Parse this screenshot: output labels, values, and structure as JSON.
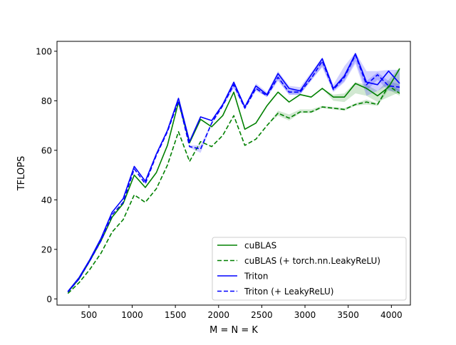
{
  "chart_data": {
    "type": "line",
    "xlabel": "M = N = K",
    "ylabel": "TFLOPS",
    "xlim": [
      130,
      4220
    ],
    "ylim": [
      -2.5,
      104
    ],
    "x_ticks": [
      500,
      1000,
      1500,
      2000,
      2500,
      3000,
      3500,
      4000
    ],
    "y_ticks": [
      0,
      20,
      40,
      60,
      80,
      100
    ],
    "grid": false,
    "legend_position": "lower right",
    "x": [
      256,
      384,
      512,
      640,
      768,
      896,
      1024,
      1152,
      1280,
      1408,
      1536,
      1664,
      1792,
      1920,
      2048,
      2176,
      2304,
      2432,
      2560,
      2688,
      2816,
      2944,
      3072,
      3200,
      3328,
      3456,
      3584,
      3712,
      3840,
      3968,
      4096
    ],
    "series": [
      {
        "name": "cuBLAS",
        "color": "#008000",
        "linestyle": "solid",
        "values": [
          2.8,
          8.0,
          15.5,
          23.5,
          33.0,
          38.5,
          50.0,
          45.0,
          51.0,
          62.0,
          79.5,
          63.0,
          72.5,
          69.5,
          74.0,
          83.5,
          68.5,
          71.0,
          78.0,
          83.5,
          79.5,
          82.5,
          81.5,
          85.0,
          81.5,
          81.5,
          87.0,
          85.0,
          82.0,
          85.5,
          93.0
        ],
        "band_low": [
          2.8,
          8.0,
          15.5,
          23.5,
          33.0,
          38.5,
          50.0,
          45.0,
          51.0,
          62.0,
          79.5,
          63.0,
          72.5,
          69.5,
          74.0,
          83.5,
          68.5,
          71.0,
          78.0,
          83.5,
          79.5,
          82.5,
          81.5,
          85.0,
          80.0,
          79.5,
          83.0,
          82.0,
          79.5,
          81.5,
          83.5
        ],
        "band_high": [
          2.8,
          8.0,
          15.5,
          23.5,
          33.0,
          38.5,
          50.0,
          45.0,
          51.0,
          62.0,
          79.5,
          63.0,
          72.5,
          69.5,
          74.0,
          83.5,
          68.5,
          71.0,
          78.0,
          83.5,
          79.5,
          82.5,
          81.5,
          85.0,
          82.5,
          83.0,
          87.5,
          86.5,
          84.0,
          88.5,
          93.5
        ]
      },
      {
        "name": "cuBLAS (+ torch.nn.LeakyReLU)",
        "color": "#008000",
        "linestyle": "dashed",
        "values": [
          2.2,
          6.5,
          12.0,
          18.5,
          27.0,
          32.0,
          42.0,
          39.0,
          44.5,
          54.0,
          67.5,
          55.5,
          63.5,
          61.5,
          66.0,
          74.0,
          62.0,
          64.5,
          70.0,
          75.0,
          73.0,
          75.5,
          75.5,
          77.5,
          77.0,
          76.5,
          78.5,
          79.5,
          78.5,
          86.0,
          83.0
        ],
        "band_low": [
          2.2,
          6.5,
          12.0,
          18.5,
          27.0,
          32.0,
          42.0,
          39.0,
          44.5,
          54.0,
          67.5,
          55.5,
          63.5,
          61.5,
          66.0,
          74.0,
          62.0,
          64.5,
          70.0,
          74.0,
          72.0,
          75.0,
          75.0,
          77.0,
          76.5,
          76.0,
          78.0,
          78.5,
          78.0,
          84.5,
          82.0
        ],
        "band_high": [
          2.2,
          6.5,
          12.0,
          18.5,
          27.0,
          32.0,
          42.0,
          39.0,
          44.5,
          54.0,
          67.5,
          55.5,
          63.5,
          61.5,
          66.0,
          74.0,
          62.0,
          64.5,
          70.0,
          76.0,
          74.5,
          76.5,
          76.5,
          78.0,
          77.5,
          77.0,
          79.0,
          80.5,
          79.0,
          87.0,
          84.0
        ]
      },
      {
        "name": "Triton",
        "color": "#0000ff",
        "linestyle": "solid",
        "values": [
          3.0,
          8.5,
          16.0,
          24.5,
          35.0,
          40.5,
          53.5,
          47.5,
          58.5,
          68.0,
          81.0,
          63.5,
          73.5,
          72.0,
          78.5,
          87.5,
          77.5,
          86.0,
          82.5,
          91.0,
          85.0,
          84.0,
          90.5,
          97.0,
          85.0,
          90.0,
          99.0,
          87.5,
          86.5,
          92.0,
          87.0
        ],
        "band_low": [
          3.0,
          8.5,
          16.0,
          24.5,
          35.0,
          40.5,
          53.5,
          47.5,
          58.5,
          68.0,
          81.0,
          63.5,
          73.5,
          72.0,
          78.5,
          85.5,
          77.5,
          84.5,
          81.5,
          88.5,
          82.5,
          82.5,
          88.5,
          93.5,
          83.5,
          87.5,
          95.0,
          82.0,
          84.0,
          86.5,
          83.5
        ],
        "band_high": [
          3.0,
          8.5,
          16.0,
          24.5,
          35.0,
          40.5,
          53.5,
          47.5,
          58.5,
          68.0,
          81.0,
          63.5,
          73.5,
          72.0,
          78.5,
          88.0,
          78.0,
          87.0,
          83.5,
          92.0,
          86.0,
          85.5,
          91.5,
          97.5,
          86.5,
          94.0,
          99.5,
          92.0,
          92.0,
          92.5,
          92.5
        ]
      },
      {
        "name": "Triton (+ LeakyReLU)",
        "color": "#0000ff",
        "linestyle": "dashed",
        "values": [
          2.8,
          8.0,
          15.5,
          23.5,
          34.0,
          39.0,
          52.5,
          46.5,
          58.0,
          67.5,
          80.0,
          61.5,
          60.5,
          71.0,
          78.0,
          86.5,
          77.0,
          85.0,
          82.0,
          89.5,
          83.5,
          83.5,
          89.0,
          96.0,
          84.5,
          89.5,
          98.5,
          86.5,
          90.5,
          86.0,
          85.5
        ],
        "band_low": [
          2.8,
          8.0,
          15.5,
          23.5,
          34.0,
          39.0,
          52.5,
          46.5,
          58.0,
          67.5,
          80.0,
          61.0,
          59.0,
          70.5,
          77.5,
          85.0,
          76.5,
          84.0,
          81.5,
          88.0,
          82.5,
          82.5,
          88.0,
          94.0,
          84.0,
          88.0,
          96.0,
          84.0,
          88.5,
          84.0,
          83.5
        ],
        "band_high": [
          2.8,
          8.0,
          15.5,
          23.5,
          34.0,
          39.0,
          52.5,
          46.5,
          58.0,
          67.5,
          80.0,
          62.0,
          62.0,
          71.5,
          78.5,
          87.0,
          77.5,
          86.0,
          82.5,
          90.5,
          84.5,
          84.5,
          90.0,
          97.0,
          85.0,
          91.0,
          99.0,
          88.0,
          91.5,
          88.0,
          86.5
        ]
      }
    ]
  }
}
